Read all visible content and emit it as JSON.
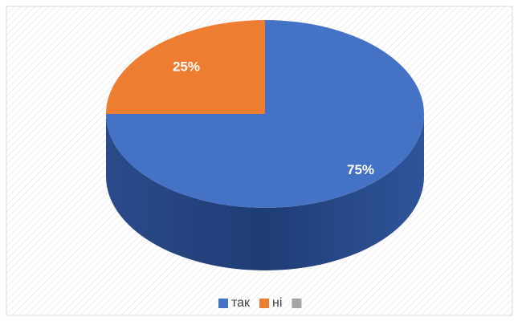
{
  "chart_data": {
    "type": "pie",
    "categories": [
      "так",
      "ні",
      null
    ],
    "values": [
      75,
      25,
      0
    ],
    "value_labels": [
      "75%",
      "25%",
      null
    ],
    "colors": [
      "#4472c4",
      "#ed7d31",
      "#a5a5a5"
    ],
    "legend": "bottom"
  }
}
